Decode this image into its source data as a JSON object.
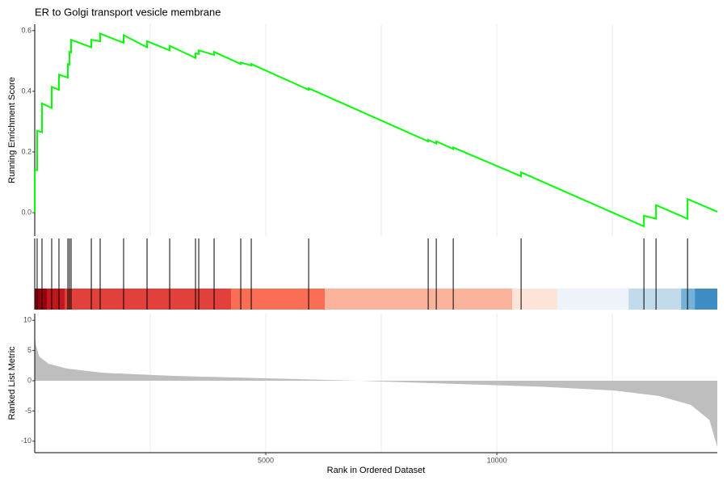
{
  "chart_data": [
    {
      "type": "line",
      "title": "ER to Golgi transport vesicle membrane",
      "y_label": "Running Enrichment Score",
      "x": [
        0,
        0,
        52,
        52,
        157,
        157,
        367,
        367,
        524,
        524,
        717,
        717,
        752,
        752,
        787,
        787,
        1224,
        1224,
        1416,
        1416,
        1923,
        1923,
        2430,
        2430,
        2920,
        2920,
        3479,
        3479,
        3549,
        3549,
        3881,
        3881,
        4458,
        4458,
        4685,
        4685,
        5927,
        5927,
        8514,
        8514,
        8689,
        8689,
        9056,
        9056,
        10524,
        10524,
        13182,
        13182,
        13444,
        13444,
        14126,
        14126,
        14770
      ],
      "series": [
        {
          "color": "#00ff00",
          "values": [
            0,
            0.14,
            0.14,
            0.27,
            0.265,
            0.36,
            0.345,
            0.415,
            0.405,
            0.455,
            0.445,
            0.49,
            0.488,
            0.53,
            0.528,
            0.57,
            0.545,
            0.57,
            0.565,
            0.59,
            0.56,
            0.585,
            0.545,
            0.565,
            0.535,
            0.55,
            0.51,
            0.525,
            0.523,
            0.535,
            0.52,
            0.53,
            0.49,
            0.495,
            0.485,
            0.49,
            0.405,
            0.41,
            0.235,
            0.24,
            0.228,
            0.235,
            0.21,
            0.215,
            0.12,
            0.133,
            -0.045,
            -0.01,
            -0.02,
            0.025,
            -0.02,
            0.045,
            0.003
          ]
        }
      ],
      "xlim": [
        0,
        14770
      ],
      "ylim": [
        -0.077,
        0.621
      ],
      "yticks": [
        {
          "value": 0,
          "label": "0.0"
        },
        {
          "value": 0.2,
          "label": "0.2"
        },
        {
          "value": 0.4,
          "label": "0.4"
        },
        {
          "value": 0.6,
          "label": "0.6"
        }
      ],
      "xgrid": [
        2500,
        5000,
        7500,
        10000,
        12500
      ]
    },
    {
      "type": "rug",
      "xlim": [
        0,
        14770
      ],
      "hits": [
        0,
        52,
        157,
        367,
        524,
        717,
        752,
        787,
        1224,
        1416,
        1923,
        2430,
        2920,
        3479,
        3549,
        3881,
        4458,
        4685,
        5927,
        8514,
        8689,
        9056,
        10524,
        13182,
        13444,
        14126
      ],
      "bands": [
        {
          "start": 0,
          "end": 262,
          "color": "#99000d"
        },
        {
          "start": 262,
          "end": 647,
          "color": "#c0171e"
        },
        {
          "start": 647,
          "end": 4248,
          "color": "#e2403b"
        },
        {
          "start": 4248,
          "end": 6276,
          "color": "#fb6e55"
        },
        {
          "start": 6276,
          "end": 10332,
          "color": "#fcb39c"
        },
        {
          "start": 10332,
          "end": 11311,
          "color": "#fde3d8"
        },
        {
          "start": 11311,
          "end": 12850,
          "color": "#eef3fb"
        },
        {
          "start": 12850,
          "end": 13986,
          "color": "#c2dbea"
        },
        {
          "start": 13986,
          "end": 14283,
          "color": "#74b0d8"
        },
        {
          "start": 14283,
          "end": 14770,
          "color": "#3e8cc4"
        }
      ]
    },
    {
      "type": "area",
      "x_label": "Rank in Ordered Dataset",
      "y_label": "Ranked List Metric",
      "x": [
        0,
        20,
        100,
        300,
        700,
        1500,
        3000,
        5000,
        7000,
        9000,
        11000,
        12500,
        13500,
        14200,
        14600,
        14770
      ],
      "values": [
        8,
        6,
        4,
        2.8,
        2,
        1.3,
        0.8,
        0.4,
        0,
        -0.5,
        -1,
        -1.6,
        -2.5,
        -4,
        -6.5,
        -11
      ],
      "color": "#bebebe",
      "xlim": [
        0,
        14770
      ],
      "ylim": [
        -11.9,
        11.1
      ],
      "yticks": [
        -10,
        -5,
        0,
        5,
        10
      ],
      "xticks": [
        5000,
        10000
      ],
      "xgrid": [
        2500,
        5000,
        7500,
        10000,
        12500
      ]
    }
  ]
}
